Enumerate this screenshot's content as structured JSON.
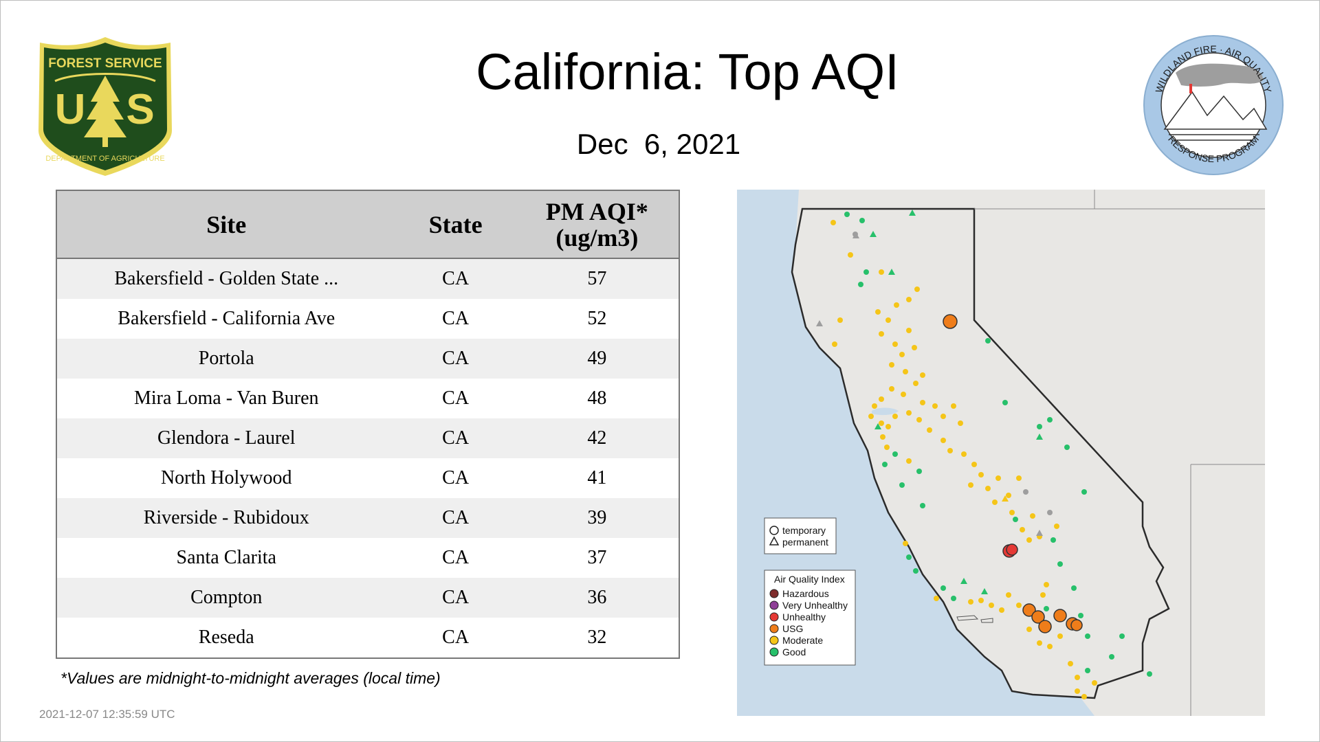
{
  "title": "California: Top AQI",
  "date": "Dec  6, 2021",
  "left_logo": {
    "name": "usda-forest-service-shield",
    "top_text": "FOREST SERVICE",
    "letters": "U   S",
    "bottom_text": "DEPARTMENT OF AGRICULTURE",
    "colors": {
      "green": "#1f4d1c",
      "gold": "#e9d85c"
    }
  },
  "right_logo": {
    "name": "wildland-fire-air-quality-response-program",
    "top_text": "WILDLAND FIRE · AIR QUALITY",
    "bottom_text": "RESPONSE PROGRAM",
    "ring_color": "#a9c8e6"
  },
  "table": {
    "headers": {
      "site": "Site",
      "state": "State",
      "aqi_line1": "PM AQI*",
      "aqi_line2": "(ug/m3)"
    },
    "rows": [
      {
        "site": "Bakersfield - Golden State ...",
        "state": "CA",
        "aqi": "57"
      },
      {
        "site": "Bakersfield - California Ave",
        "state": "CA",
        "aqi": "52"
      },
      {
        "site": "Portola",
        "state": "CA",
        "aqi": "49"
      },
      {
        "site": "Mira Loma - Van Buren",
        "state": "CA",
        "aqi": "48"
      },
      {
        "site": "Glendora - Laurel",
        "state": "CA",
        "aqi": "42"
      },
      {
        "site": "North Holywood",
        "state": "CA",
        "aqi": "41"
      },
      {
        "site": "Riverside - Rubidoux",
        "state": "CA",
        "aqi": "39"
      },
      {
        "site": "Santa Clarita",
        "state": "CA",
        "aqi": "37"
      },
      {
        "site": "Compton",
        "state": "CA",
        "aqi": "36"
      },
      {
        "site": "Reseda",
        "state": "CA",
        "aqi": "32"
      }
    ]
  },
  "footnote": "*Values are midnight-to-midnight averages (local time)",
  "timestamp": "2021-12-07 12:35:59 UTC",
  "map": {
    "shape_legend": {
      "temporary": "temporary",
      "permanent": "permanent"
    },
    "aqi_legend": {
      "title": "Air Quality Index",
      "items": [
        {
          "label": "Hazardous",
          "color": "#7e2c2c"
        },
        {
          "label": "Very Unhealthy",
          "color": "#8f3f97"
        },
        {
          "label": "Unhealthy",
          "color": "#e53935"
        },
        {
          "label": "USG",
          "color": "#ef7d1a"
        },
        {
          "label": "Moderate",
          "color": "#f5c518"
        },
        {
          "label": "Good",
          "color": "#27c06a"
        }
      ]
    },
    "colors": {
      "ocean": "#c9dbea",
      "land": "#e8e7e4",
      "border": "#2b2b2b"
    }
  }
}
